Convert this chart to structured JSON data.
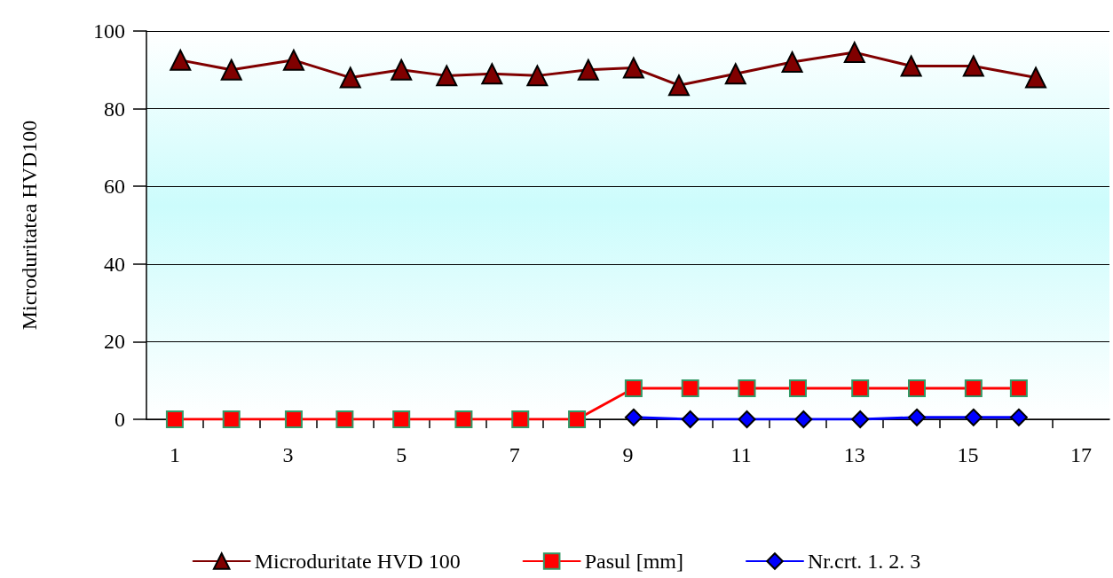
{
  "chart_data": {
    "type": "line",
    "ylabel": "Microduritatea HVD100",
    "xlim": [
      0.5,
      17.5
    ],
    "xticks": [
      1,
      {
        "value": 1.5,
        "label": null
      },
      {
        "value": 2.5,
        "label": null
      },
      3,
      {
        "value": 3.5,
        "label": null
      },
      {
        "value": 4.5,
        "label": null
      },
      5,
      {
        "value": 5.5,
        "label": null
      },
      {
        "value": 6.5,
        "label": null
      },
      7,
      {
        "value": 7.5,
        "label": null
      },
      {
        "value": 8.5,
        "label": null
      },
      9,
      {
        "value": 9.5,
        "label": null
      },
      {
        "value": 10.5,
        "label": null
      },
      11,
      {
        "value": 11.5,
        "label": null
      },
      {
        "value": 12.5,
        "label": null
      },
      13,
      {
        "value": 13.5,
        "label": null
      },
      {
        "value": 14.5,
        "label": null
      },
      15,
      {
        "value": 15.5,
        "label": null
      },
      {
        "value": 16.5,
        "label": null
      },
      17
    ],
    "ylim": [
      0,
      100
    ],
    "yticks": [
      0,
      20,
      40,
      60,
      80,
      100
    ],
    "grid": "y",
    "legend": "bottom",
    "line_style": "solid",
    "series": [
      {
        "name": "Microduritate HVD 100",
        "color": "#800000",
        "marker": "triangle",
        "x": [
          1.1,
          2.0,
          3.1,
          4.1,
          5.0,
          5.8,
          6.6,
          7.4,
          8.3,
          9.1,
          9.9,
          10.9,
          11.9,
          13.0,
          14.0,
          15.1,
          16.2
        ],
        "values": [
          92.5,
          90,
          92.5,
          88,
          90,
          88.5,
          89,
          88.5,
          90,
          90.5,
          86,
          89,
          92,
          94.5,
          91,
          91,
          88
        ]
      },
      {
        "name": "Pasul [mm]",
        "color": "#ff0000",
        "marker": "square",
        "x": [
          1.0,
          2.0,
          3.1,
          4.0,
          5.0,
          6.1,
          7.1,
          8.1,
          9.1,
          10.1,
          11.1,
          12.0,
          13.1,
          14.1,
          15.1,
          15.9
        ],
        "values": [
          0,
          0,
          0,
          0,
          0,
          0,
          0,
          0,
          8,
          8,
          8,
          8,
          8,
          8,
          8,
          8
        ]
      },
      {
        "name": "Nr.crt. 1. 2. 3",
        "color": "#0000ff",
        "marker": "diamond",
        "x": [
          9.1,
          10.1,
          11.1,
          12.1,
          13.1,
          14.1,
          15.1,
          15.9
        ],
        "values": [
          0.5,
          0,
          0,
          0,
          0,
          0.5,
          0.5,
          0.5
        ]
      }
    ]
  }
}
